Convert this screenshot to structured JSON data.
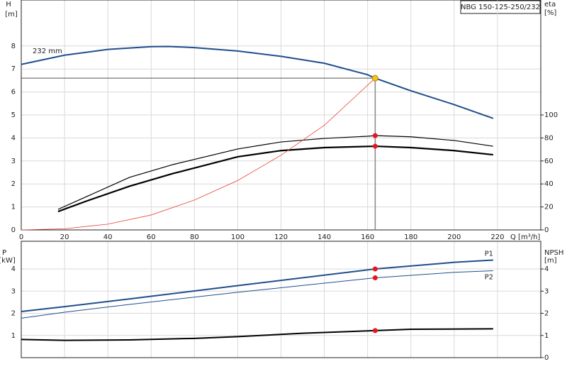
{
  "chart_data": [
    {
      "type": "line",
      "title": "NBG 150-125-250/232",
      "annotation": "232 mm",
      "xlabel": "Q [m³/h]",
      "ylabel": "H",
      "yunit": "[m]",
      "y2label": "eta",
      "y2unit": "[%]",
      "xlim": [
        0,
        240
      ],
      "xticks": [
        0,
        20,
        40,
        60,
        80,
        100,
        120,
        140,
        160,
        180,
        200,
        220
      ],
      "ylim": [
        0,
        10
      ],
      "yticks": [
        0,
        1,
        2,
        3,
        4,
        5,
        6,
        7,
        8
      ],
      "y2lim": [
        0,
        200
      ],
      "y2ticks": [
        0,
        20,
        40,
        60,
        80,
        100
      ],
      "grid": true,
      "series": [
        {
          "color": "#1f4e8c",
          "width": 2,
          "x": [
            0,
            20,
            40,
            60,
            68,
            80,
            100,
            120,
            140,
            160,
            163.5,
            180,
            200,
            218
          ],
          "values": [
            7.2,
            7.6,
            7.85,
            7.97,
            7.98,
            7.93,
            7.78,
            7.55,
            7.25,
            6.75,
            6.6,
            6.05,
            5.45,
            4.85
          ]
        },
        {
          "color": "#000000",
          "width": 1.2,
          "axis": "y2",
          "x": [
            17,
            50,
            70,
            100,
            120,
            140,
            160,
            163.5,
            180,
            200,
            218
          ],
          "values": [
            17.9,
            45.7,
            56.8,
            70.4,
            76.5,
            79.6,
            81.5,
            82,
            81,
            77.8,
            72.8
          ]
        },
        {
          "color": "#000000",
          "width": 2.2,
          "axis": "y2",
          "x": [
            17,
            30,
            50,
            70,
            100,
            120,
            140,
            163.5,
            180,
            200,
            218
          ],
          "values": [
            16,
            25,
            38,
            49,
            63.6,
            69,
            71.6,
            72.8,
            71.6,
            69,
            65.4
          ]
        },
        {
          "color": "#e8443a",
          "width": 0.8,
          "x": [
            0,
            20,
            40,
            60,
            80,
            100,
            120,
            140,
            163.5
          ],
          "values": [
            0,
            0.05,
            0.25,
            0.65,
            1.3,
            2.15,
            3.25,
            4.55,
            6.6
          ]
        }
      ],
      "operating_point": {
        "x": 163.5,
        "y": 6.6,
        "color": "#f5c518"
      },
      "points": [
        {
          "x": 163.5,
          "y": 82,
          "axis": "y2",
          "color": "#e8141e"
        },
        {
          "x": 163.5,
          "y": 72.8,
          "axis": "y2",
          "color": "#e8141e"
        }
      ]
    },
    {
      "type": "line",
      "ylabel": "P",
      "yunit": "[kW]",
      "y2label": "NPSH",
      "y2unit": "[m]",
      "xlim": [
        0,
        240
      ],
      "xticks": [
        0,
        20,
        40,
        60,
        80,
        100,
        120,
        140,
        160,
        180,
        200,
        220
      ],
      "ylim": [
        0,
        5.25
      ],
      "yticks": [
        1,
        2,
        3,
        4
      ],
      "y2lim": [
        0,
        5.25
      ],
      "y2ticks": [
        0,
        1,
        2,
        3,
        4
      ],
      "grid": true,
      "series": [
        {
          "name": "P1",
          "color": "#1f4e8c",
          "width": 2,
          "x": [
            0,
            20,
            50,
            100,
            163.5,
            200,
            218
          ],
          "values": [
            2.08,
            2.3,
            2.65,
            3.25,
            4.0,
            4.3,
            4.4
          ]
        },
        {
          "name": "P2",
          "color": "#1f4e8c",
          "width": 1,
          "x": [
            0,
            20,
            50,
            100,
            163.5,
            200,
            218
          ],
          "values": [
            1.78,
            2.05,
            2.4,
            2.95,
            3.6,
            3.85,
            3.92
          ]
        },
        {
          "color": "#000000",
          "width": 2,
          "axis": "y2",
          "x": [
            0,
            20,
            50,
            80,
            100,
            130,
            163.5,
            180,
            218
          ],
          "values": [
            0.82,
            0.78,
            0.8,
            0.87,
            0.95,
            1.1,
            1.22,
            1.28,
            1.3
          ]
        }
      ],
      "points": [
        {
          "x": 163.5,
          "y": 4.0,
          "color": "#e8141e"
        },
        {
          "x": 163.5,
          "y": 3.6,
          "color": "#e8141e"
        },
        {
          "x": 163.5,
          "y": 1.22,
          "axis": "y2",
          "color": "#e8141e"
        }
      ]
    }
  ]
}
